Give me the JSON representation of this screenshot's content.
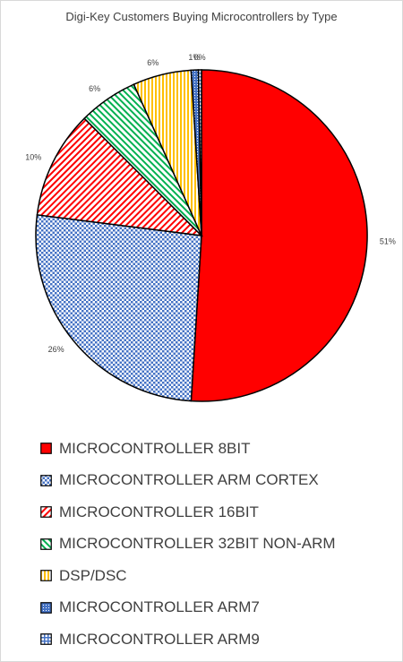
{
  "chart_data": {
    "type": "pie",
    "title": "Digi-Key Customers Buying Microcontrollers by Type",
    "legend_position": "bottom",
    "slices": [
      {
        "label": "MICROCONTROLLER 8BIT",
        "value": 51.0,
        "display": "51%",
        "color": "#ff0000",
        "pattern": "solid"
      },
      {
        "label": "MICROCONTROLLER ARM CORTEX",
        "value": 26.0,
        "display": "26%",
        "color": "#4472c4",
        "pattern": "checker"
      },
      {
        "label": "MICROCONTROLLER 16BIT",
        "value": 10.5,
        "display": "10%",
        "color": "#ff0000",
        "pattern": "diagonal-up"
      },
      {
        "label": "MICROCONTROLLER 32BIT NON-ARM",
        "value": 5.8,
        "display": "6%",
        "color": "#00b050",
        "pattern": "diagonal-down"
      },
      {
        "label": "DSP/DSC",
        "value": 5.7,
        "display": "6%",
        "color": "#ffc000",
        "pattern": "vertical"
      },
      {
        "label": "MICROCONTROLLER ARM7",
        "value": 0.7,
        "display": "1%",
        "color": "#4472c4",
        "pattern": "dots"
      },
      {
        "label": "MICROCONTROLLER ARM9",
        "value": 0.3,
        "display": "0%",
        "color": "#4472c4",
        "pattern": "grid"
      }
    ]
  }
}
